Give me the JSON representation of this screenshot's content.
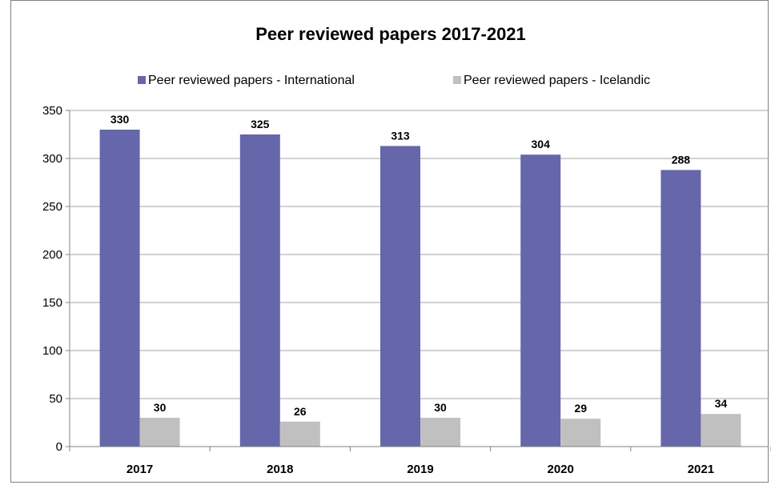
{
  "chart_data": {
    "type": "bar",
    "title": "Peer reviewed papers 2017-2021",
    "categories": [
      "2017",
      "2018",
      "2019",
      "2020",
      "2021"
    ],
    "series": [
      {
        "name": "Peer reviewed papers - International",
        "color": "#6666aa",
        "values": [
          330,
          325,
          313,
          304,
          288
        ]
      },
      {
        "name": "Peer reviewed papers - Icelandic",
        "color": "#c0c0c0",
        "values": [
          30,
          26,
          30,
          29,
          34
        ]
      }
    ],
    "ylim": [
      0,
      350
    ],
    "yticks": [
      0,
      50,
      100,
      150,
      200,
      250,
      300,
      350
    ],
    "legend_position": "top",
    "grid": true
  }
}
